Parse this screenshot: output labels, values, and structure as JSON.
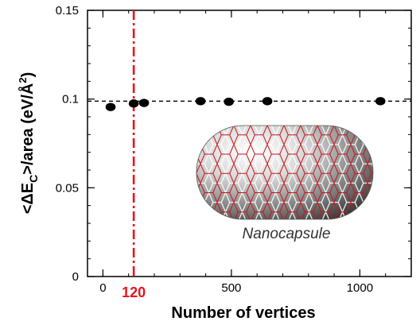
{
  "chart_data": {
    "type": "scatter",
    "xlabel": "Number of vertices",
    "ylabel": "<ΔE_C>/area (eV/Å²)",
    "ylabel_parts": {
      "pre": "<ΔE",
      "sub": "C",
      "post": ">/area (eV/Å",
      "sup": "2",
      "end": ")"
    },
    "xlim": [
      -60,
      1200
    ],
    "ylim": [
      0,
      0.15
    ],
    "xticks": [
      {
        "value": 0,
        "label": "0"
      },
      {
        "value": 500,
        "label": "500"
      },
      {
        "value": 1000,
        "label": "1000"
      }
    ],
    "yticks": [
      {
        "value": 0,
        "label": "0"
      },
      {
        "value": 0.05,
        "label": "0.05"
      },
      {
        "value": 0.1,
        "label": "0.1"
      },
      {
        "value": 0.15,
        "label": "0.15"
      }
    ],
    "points": [
      {
        "x": 30,
        "y": 0.0955
      },
      {
        "x": 120,
        "y": 0.0975
      },
      {
        "x": 160,
        "y": 0.0978
      },
      {
        "x": 380,
        "y": 0.0988
      },
      {
        "x": 490,
        "y": 0.0985
      },
      {
        "x": 640,
        "y": 0.0988
      },
      {
        "x": 1080,
        "y": 0.0988
      }
    ],
    "reference_line": {
      "y": 0.0988,
      "style": "dashed",
      "color": "#000000"
    },
    "vertical_marker": {
      "x": 120,
      "label": "120",
      "color": "#e8141b",
      "style": "dash-dot"
    },
    "inset": {
      "label": "Nanocapsule"
    },
    "grid": false
  }
}
